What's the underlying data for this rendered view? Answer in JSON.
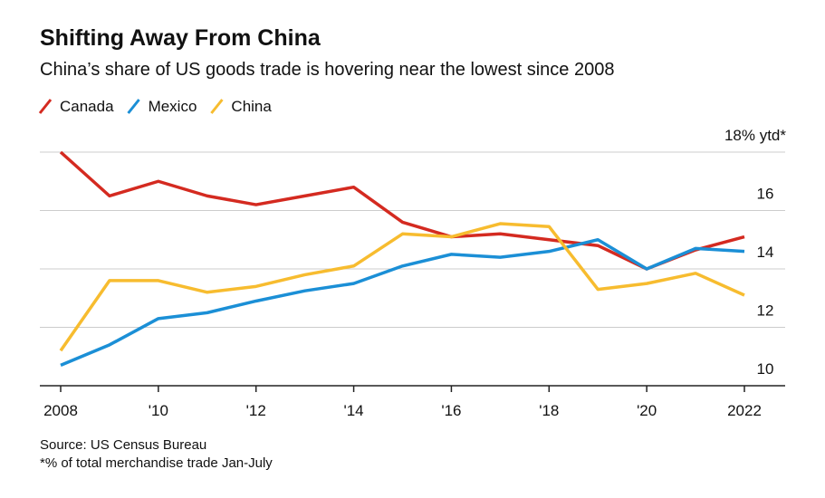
{
  "chart_data": {
    "type": "line",
    "title": "Shifting Away From China",
    "subtitle": "China’s share of US goods trade is hovering near the lowest since 2008",
    "x": [
      2008,
      2009,
      2010,
      2011,
      2012,
      2013,
      2014,
      2015,
      2016,
      2017,
      2018,
      2019,
      2020,
      2021,
      2022
    ],
    "series": [
      {
        "name": "Canada",
        "color": "#d42a20",
        "values": [
          18.0,
          16.5,
          17.0,
          16.5,
          16.2,
          16.5,
          16.8,
          15.6,
          15.1,
          15.2,
          15.0,
          14.8,
          14.0,
          14.65,
          15.1
        ]
      },
      {
        "name": "Mexico",
        "color": "#1b8fd6",
        "values": [
          10.7,
          11.4,
          12.3,
          12.5,
          12.9,
          13.25,
          13.5,
          14.1,
          14.5,
          14.4,
          14.6,
          15.0,
          14.0,
          14.7,
          14.6
        ]
      },
      {
        "name": "China",
        "color": "#f7bc2f",
        "values": [
          11.2,
          13.6,
          13.6,
          13.2,
          13.4,
          13.8,
          14.1,
          15.2,
          15.1,
          15.55,
          15.45,
          13.3,
          13.5,
          13.85,
          13.1
        ]
      }
    ],
    "xlim": [
      2008,
      2022
    ],
    "xticks": [
      2008,
      {
        "value": 2010,
        "label": "'10"
      },
      {
        "value": 2012,
        "label": "'12"
      },
      {
        "value": 2014,
        "label": "'14"
      },
      {
        "value": 2016,
        "label": "'16"
      },
      {
        "value": 2018,
        "label": "'18"
      },
      {
        "value": 2020,
        "label": "'20"
      },
      2022
    ],
    "ylim": [
      10,
      18
    ],
    "yticks": [
      10,
      12,
      14,
      16,
      {
        "value": 18,
        "label": "18% ytd*"
      }
    ],
    "grid": true,
    "source": "Source: US Census Bureau",
    "footnote": "*% of total merchandise trade Jan-July"
  }
}
